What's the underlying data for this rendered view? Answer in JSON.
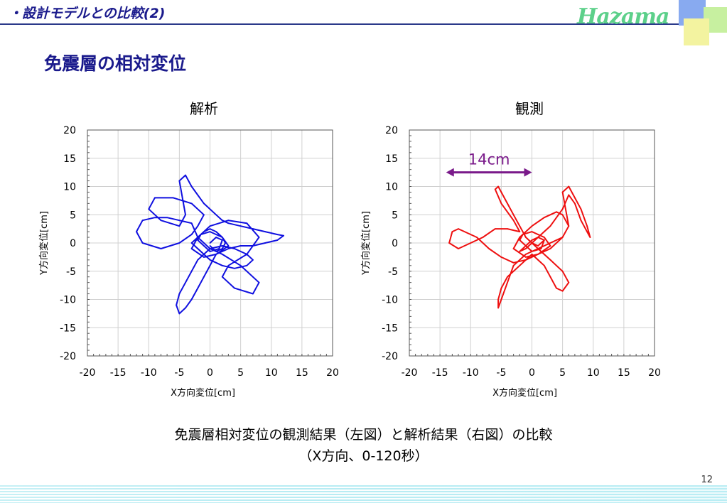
{
  "header": {
    "title": "・設計モデルとの比較(2)",
    "logo": "Hazama"
  },
  "slide_title": "免震層の相対変位",
  "caption": {
    "line1": "免震層相対変位の観測結果（左図）と解析結果（右図）の比較",
    "line2": "（X方向、0-120秒）"
  },
  "page_number": "12",
  "colors": {
    "analysis": "#1010e0",
    "observed": "#ee1010",
    "annotation": "#7a1a8a",
    "title": "#1a1a8c"
  },
  "chart_data": [
    {
      "type": "scatter",
      "title": "解析",
      "xlabel": "X方向変位[cm]",
      "ylabel": "Y方向変位[cm]",
      "xlim": [
        -20,
        20
      ],
      "ylim": [
        -20,
        20
      ],
      "xticks": [
        "-20",
        "-15",
        "-10",
        "-5",
        "0",
        "5",
        "10",
        "15",
        "20"
      ],
      "yticks": [
        "20",
        "15",
        "10",
        "5",
        "0",
        "-5",
        "-10",
        "-15",
        "-20"
      ],
      "grid": true,
      "series": [
        {
          "x": [
            0,
            1,
            2,
            1.5,
            0,
            -1,
            -2,
            -1.5,
            0,
            2,
            3,
            1,
            -1,
            -3,
            -2,
            0,
            3,
            6,
            8,
            6,
            3,
            2,
            4,
            7,
            8,
            5,
            2,
            0,
            -2,
            -3,
            -5,
            -7,
            -9,
            -11,
            -12,
            -11,
            -8,
            -5,
            -3,
            -2,
            -1,
            -3,
            -6,
            -9,
            -10,
            -8,
            -5,
            -4,
            -4.5,
            -5,
            -4,
            -3,
            -1,
            1,
            2,
            3,
            5,
            7,
            9,
            11,
            12,
            11,
            9,
            7,
            5,
            3,
            1,
            0,
            -1,
            -2,
            -3,
            -4,
            -5,
            -5.5,
            -5,
            -4,
            -3,
            -2,
            -1,
            0,
            2,
            4,
            6,
            7,
            6,
            4,
            2,
            0,
            -1,
            -2,
            -3,
            -2,
            -1,
            0,
            1,
            2,
            2.5,
            2,
            1,
            0
          ],
          "y": [
            0,
            1,
            0.5,
            -1,
            -1.5,
            -0.5,
            0.5,
            1.5,
            2,
            1,
            -0.5,
            -2,
            -2.5,
            -1,
            1,
            3,
            4,
            3.5,
            1,
            -2,
            -4,
            -6,
            -8,
            -9,
            -7,
            -4,
            -2,
            -1,
            1,
            3.5,
            4,
            4.5,
            4.5,
            4,
            2,
            0,
            -1,
            0,
            1.5,
            3,
            5,
            7,
            8,
            8,
            6,
            4,
            3,
            5,
            8,
            11,
            12,
            10,
            7,
            5,
            4,
            3.5,
            3,
            2.5,
            2,
            1.5,
            1.3,
            0.5,
            0,
            -0.5,
            -0.5,
            -1,
            -2,
            -4,
            -6,
            -8,
            -10,
            -11.5,
            -12.5,
            -11,
            -9,
            -7,
            -5,
            -3,
            -2,
            -1,
            -0.5,
            -1,
            -2,
            -3,
            -4,
            -4.5,
            -4,
            -3,
            -2,
            -1,
            0,
            1,
            2,
            2.5,
            2,
            1,
            0,
            -1,
            -1.5,
            -0.5
          ]
        }
      ]
    },
    {
      "type": "scatter",
      "title": "観測",
      "xlabel": "X方向変位[cm]",
      "ylabel": "Y方向変位[cm]",
      "xlim": [
        -20,
        20
      ],
      "ylim": [
        -20,
        20
      ],
      "xticks": [
        "-20",
        "-15",
        "-10",
        "-5",
        "0",
        "5",
        "10",
        "15",
        "20"
      ],
      "yticks": [
        "20",
        "15",
        "10",
        "5",
        "0",
        "-5",
        "-10",
        "-15",
        "-20"
      ],
      "grid": true,
      "annotation": {
        "text": "14cm",
        "x1": -14,
        "x2": 0,
        "y": 12.5
      },
      "series": [
        {
          "x": [
            0,
            1,
            2,
            1.5,
            0,
            -1,
            -2,
            -1.5,
            0,
            2,
            3,
            1,
            -1,
            -3,
            -2,
            0,
            2,
            4,
            5,
            6,
            5,
            3,
            1,
            -1,
            -3,
            -5,
            -7,
            -9,
            -12,
            -13,
            -13.5,
            -12,
            -10,
            -8,
            -6,
            -4,
            -2,
            -3,
            -5,
            -6,
            -5.5,
            -5,
            -4,
            -3,
            -2,
            -1,
            1,
            3,
            5,
            6,
            5,
            4,
            3,
            2,
            0,
            -2,
            -4,
            -5,
            -5.5,
            -5.5,
            -5,
            -4,
            -3,
            -1,
            1,
            3,
            5,
            6,
            5.5,
            5,
            6,
            7,
            8,
            9,
            9.5,
            9,
            8,
            7,
            6,
            5,
            3,
            1,
            0,
            -1,
            -2,
            -1,
            0,
            1,
            2,
            1,
            0
          ],
          "y": [
            0,
            1,
            0.5,
            -1,
            -1.5,
            -0.5,
            0.5,
            1.5,
            2,
            1,
            -0.5,
            -2,
            -2.5,
            -1,
            1,
            3,
            4.5,
            5.5,
            5,
            3,
            1,
            -1,
            -2,
            -3,
            -3.5,
            -2.5,
            -1,
            1,
            2.5,
            2,
            0,
            -1,
            0,
            1,
            2.5,
            2.5,
            2,
            4,
            7,
            9.5,
            10,
            9,
            7,
            5,
            3,
            1,
            -1,
            -3,
            -5,
            -7,
            -8.5,
            -8,
            -6,
            -4,
            -2,
            -4,
            -6,
            -8,
            -10,
            -11.5,
            -10,
            -7,
            -4,
            -2,
            -1,
            0,
            1,
            3,
            6,
            9,
            10,
            8,
            6,
            3,
            1,
            2,
            4,
            7,
            8.5,
            6,
            3,
            1,
            0,
            -1,
            -1.5,
            -0.5,
            0.5,
            1,
            0.5,
            -0.5,
            0
          ]
        }
      ]
    }
  ]
}
